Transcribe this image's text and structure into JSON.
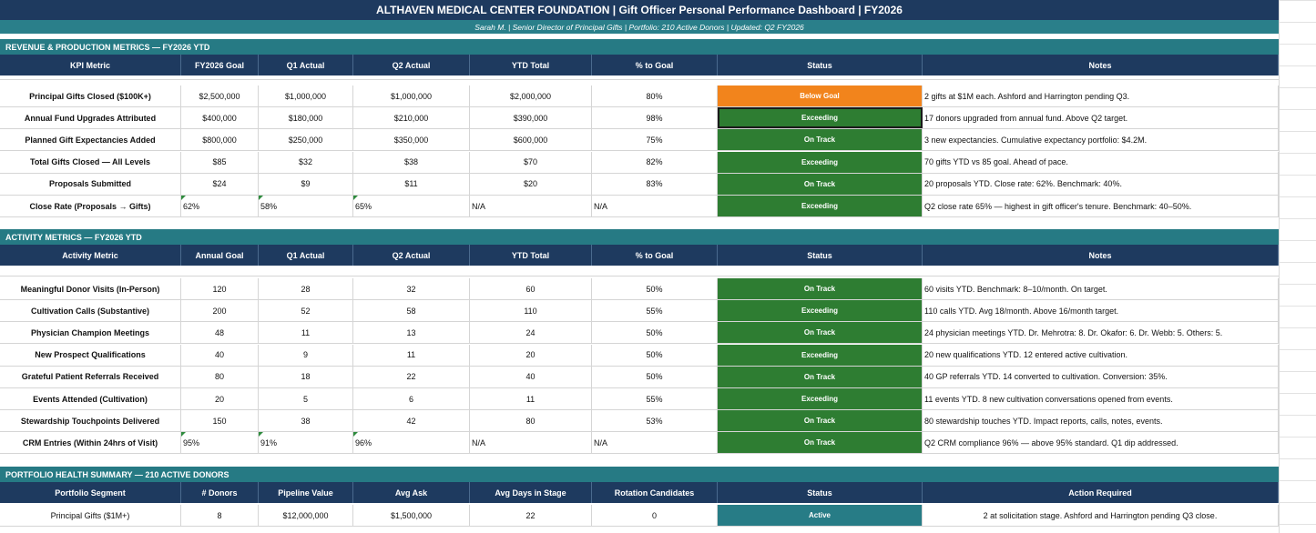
{
  "title": "ALTHAVEN MEDICAL CENTER FOUNDATION  |  Gift Officer Personal Performance Dashboard  |  FY2026",
  "subtitle": "Sarah M.  |  Senior Director of Principal Gifts  |  Portfolio: 210 Active Donors  |  Updated: Q2 FY2026",
  "colors": {
    "navy": "#1e3a5f",
    "teal": "#267a84",
    "green": "#2e7d32",
    "orange": "#f2841c"
  },
  "revenue": {
    "section_title": "REVENUE & PRODUCTION METRICS  —  FY2026 YTD",
    "headers": [
      "KPI Metric",
      "FY2026 Goal",
      "Q1 Actual",
      "Q2 Actual",
      "YTD Total",
      "% to Goal",
      "Status",
      "Notes"
    ],
    "rows": [
      {
        "metric": "Principal Gifts Closed ($100K+)",
        "goal": "$2,500,000",
        "q1": "$1,000,000",
        "q2": "$1,000,000",
        "ytd": "$2,000,000",
        "pct": "80%",
        "status": "Below Goal",
        "status_color": "orange",
        "notes": "2 gifts at $1M each. Ashford and Harrington pending Q3."
      },
      {
        "metric": "Annual Fund Upgrades Attributed",
        "goal": "$400,000",
        "q1": "$180,000",
        "q2": "$210,000",
        "ytd": "$390,000",
        "pct": "98%",
        "status": "Exceeding",
        "status_color": "green",
        "notes": "17 donors upgraded from annual fund. Above Q2 target."
      },
      {
        "metric": "Planned Gift Expectancies Added",
        "goal": "$800,000",
        "q1": "$250,000",
        "q2": "$350,000",
        "ytd": "$600,000",
        "pct": "75%",
        "status": "On Track",
        "status_color": "green",
        "notes": "3 new expectancies. Cumulative expectancy portfolio: $4.2M."
      },
      {
        "metric": "Total Gifts Closed — All Levels",
        "goal": "$85",
        "q1": "$32",
        "q2": "$38",
        "ytd": "$70",
        "pct": "82%",
        "status": "Exceeding",
        "status_color": "green",
        "notes": "70 gifts YTD vs 85 goal. Ahead of pace."
      },
      {
        "metric": "Proposals Submitted",
        "goal": "$24",
        "q1": "$9",
        "q2": "$11",
        "ytd": "$20",
        "pct": "83%",
        "status": "On Track",
        "status_color": "green",
        "notes": "20 proposals YTD. Close rate: 62%. Benchmark: 40%."
      },
      {
        "metric": "Close Rate (Proposals → Gifts)",
        "goal": "62%",
        "q1": "58%",
        "q2": "65%",
        "ytd": "N/A",
        "pct": "N/A",
        "status": "Exceeding",
        "status_color": "green",
        "notes": "Q2 close rate 65% — highest in gift officer's tenure. Benchmark: 40–50%.",
        "left": true
      }
    ]
  },
  "activity": {
    "section_title": "ACTIVITY METRICS  —  FY2026 YTD",
    "headers": [
      "Activity Metric",
      "Annual Goal",
      "Q1 Actual",
      "Q2 Actual",
      "YTD Total",
      "% to Goal",
      "Status",
      "Notes"
    ],
    "rows": [
      {
        "metric": "Meaningful Donor Visits (In-Person)",
        "goal": "120",
        "q1": "28",
        "q2": "32",
        "ytd": "60",
        "pct": "50%",
        "status": "On Track",
        "status_color": "green",
        "notes": "60 visits YTD. Benchmark: 8–10/month. On target."
      },
      {
        "metric": "Cultivation Calls (Substantive)",
        "goal": "200",
        "q1": "52",
        "q2": "58",
        "ytd": "110",
        "pct": "55%",
        "status": "Exceeding",
        "status_color": "green",
        "notes": "110 calls YTD. Avg 18/month. Above 16/month target."
      },
      {
        "metric": "Physician Champion Meetings",
        "goal": "48",
        "q1": "11",
        "q2": "13",
        "ytd": "24",
        "pct": "50%",
        "status": "On Track",
        "status_color": "green",
        "notes": "24 physician meetings YTD. Dr. Mehrotra: 8. Dr. Okafor: 6. Dr. Webb: 5. Others: 5."
      },
      {
        "metric": "New Prospect Qualifications",
        "goal": "40",
        "q1": "9",
        "q2": "11",
        "ytd": "20",
        "pct": "50%",
        "status": "Exceeding",
        "status_color": "green",
        "notes": "20 new qualifications YTD. 12 entered active cultivation."
      },
      {
        "metric": "Grateful Patient Referrals Received",
        "goal": "80",
        "q1": "18",
        "q2": "22",
        "ytd": "40",
        "pct": "50%",
        "status": "On Track",
        "status_color": "green",
        "notes": "40 GP referrals YTD. 14 converted to cultivation. Conversion: 35%."
      },
      {
        "metric": "Events Attended (Cultivation)",
        "goal": "20",
        "q1": "5",
        "q2": "6",
        "ytd": "11",
        "pct": "55%",
        "status": "Exceeding",
        "status_color": "green",
        "notes": "11 events YTD. 8 new cultivation conversations opened from events."
      },
      {
        "metric": "Stewardship Touchpoints Delivered",
        "goal": "150",
        "q1": "38",
        "q2": "42",
        "ytd": "80",
        "pct": "53%",
        "status": "On Track",
        "status_color": "green",
        "notes": "80 stewardship touches YTD. Impact reports, calls, notes, events."
      },
      {
        "metric": "CRM Entries (Within 24hrs of Visit)",
        "goal": "95%",
        "q1": "91%",
        "q2": "96%",
        "ytd": "N/A",
        "pct": "N/A",
        "status": "On Track",
        "status_color": "green",
        "notes": "Q2 CRM compliance 96% — above 95% standard. Q1 dip addressed.",
        "left": true
      }
    ]
  },
  "portfolio": {
    "section_title": "PORTFOLIO HEALTH SUMMARY  —  210 ACTIVE DONORS",
    "headers": [
      "Portfolio Segment",
      "# Donors",
      "Pipeline Value",
      "Avg Ask",
      "Avg Days in Stage",
      "Rotation Candidates",
      "Status",
      "Action Required"
    ],
    "rows": [
      {
        "segment": "Principal Gifts ($1M+)",
        "donors": "8",
        "pipeline": "$12,000,000",
        "ask": "$1,500,000",
        "days": "22",
        "rotation": "0",
        "status": "Active",
        "status_color": "teal",
        "action": "2 at solicitation stage. Ashford and Harrington pending Q3 close."
      }
    ]
  }
}
